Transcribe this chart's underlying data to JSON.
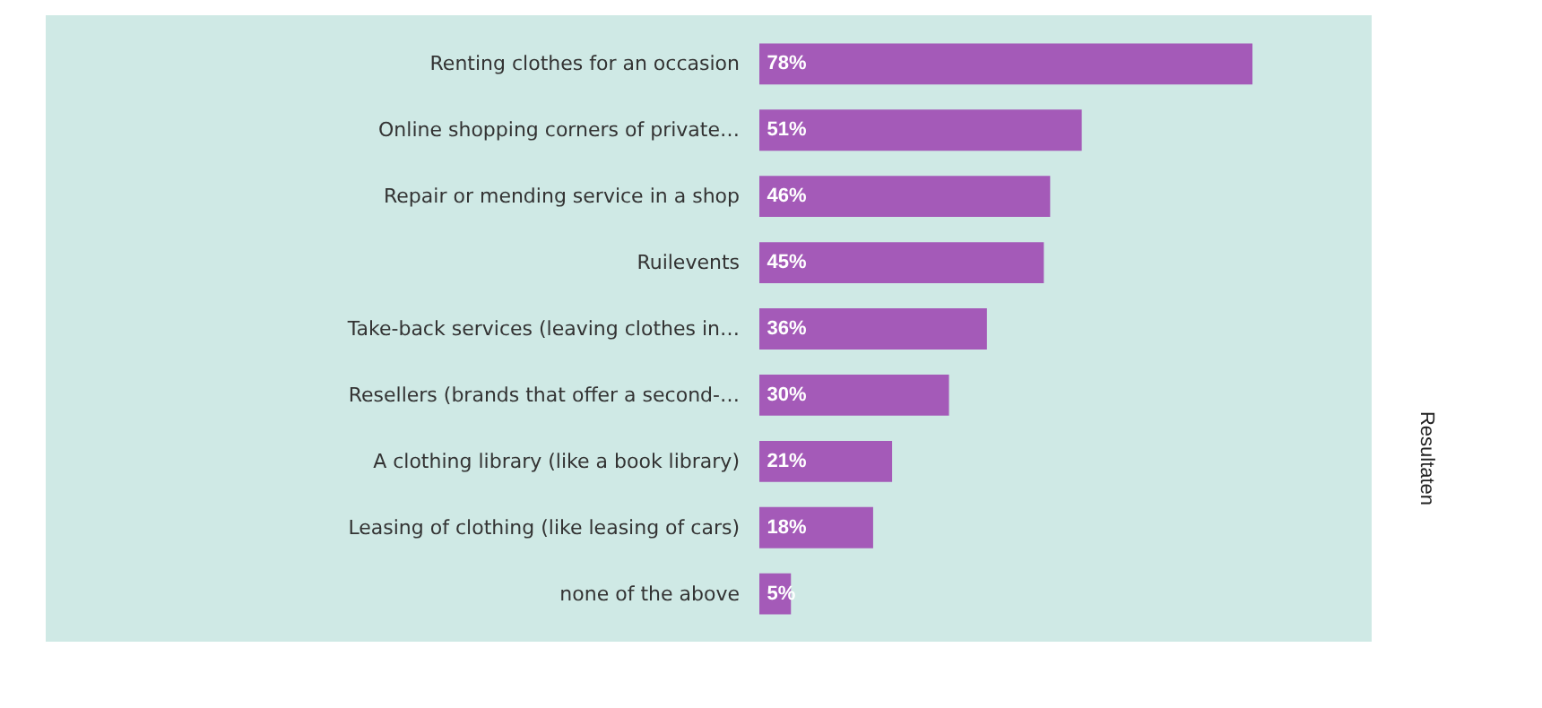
{
  "chart_data": {
    "type": "bar",
    "orientation": "horizontal",
    "categories": [
      "Renting clothes for an occasion",
      "Online shopping corners of private…",
      "Repair or mending service in a shop",
      "Ruilevents",
      "Take-back services (leaving clothes in…",
      "Resellers (brands that offer a second-…",
      "A clothing library (like a book library)",
      "Leasing of clothing (like leasing of cars)",
      "none of the above"
    ],
    "values": [
      78,
      51,
      46,
      45,
      36,
      30,
      21,
      18,
      5
    ],
    "value_labels": [
      "78%",
      "51%",
      "46%",
      "45%",
      "36%",
      "30%",
      "21%",
      "18%",
      "5%"
    ],
    "color": "#a45ab8",
    "xlim": [
      0,
      97
    ],
    "grid": false,
    "annotations": [
      "Resultaten"
    ]
  }
}
